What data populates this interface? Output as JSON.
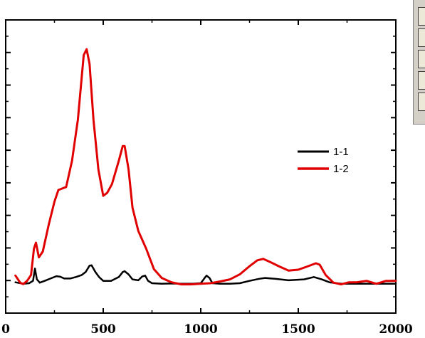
{
  "chart_data": {
    "type": "line",
    "title": "",
    "xlabel": "",
    "ylabel": "",
    "xlim": [
      0,
      2000
    ],
    "ylim": [
      0,
      1
    ],
    "x_ticks": [
      0,
      500,
      1000,
      1500,
      2000
    ],
    "x_tick_labels": [
      "0",
      "500",
      "1000",
      "1500",
      "2000"
    ],
    "grid": false,
    "legend_position": "right-middle",
    "series": [
      {
        "name": "1-1",
        "color": "#000000",
        "points": [
          [
            50,
            0.105
          ],
          [
            90,
            0.1
          ],
          [
            120,
            0.102
          ],
          [
            140,
            0.11
          ],
          [
            150,
            0.152
          ],
          [
            160,
            0.115
          ],
          [
            175,
            0.104
          ],
          [
            200,
            0.11
          ],
          [
            230,
            0.118
          ],
          [
            260,
            0.126
          ],
          [
            280,
            0.124
          ],
          [
            300,
            0.118
          ],
          [
            330,
            0.118
          ],
          [
            360,
            0.123
          ],
          [
            390,
            0.13
          ],
          [
            410,
            0.14
          ],
          [
            430,
            0.162
          ],
          [
            440,
            0.163
          ],
          [
            460,
            0.14
          ],
          [
            480,
            0.122
          ],
          [
            500,
            0.11
          ],
          [
            540,
            0.11
          ],
          [
            580,
            0.123
          ],
          [
            600,
            0.14
          ],
          [
            610,
            0.143
          ],
          [
            630,
            0.132
          ],
          [
            650,
            0.115
          ],
          [
            680,
            0.112
          ],
          [
            700,
            0.125
          ],
          [
            715,
            0.128
          ],
          [
            730,
            0.11
          ],
          [
            750,
            0.102
          ],
          [
            800,
            0.1
          ],
          [
            850,
            0.101
          ],
          [
            900,
            0.1
          ],
          [
            960,
            0.1
          ],
          [
            1000,
            0.102
          ],
          [
            1020,
            0.12
          ],
          [
            1030,
            0.128
          ],
          [
            1045,
            0.12
          ],
          [
            1060,
            0.102
          ],
          [
            1100,
            0.1
          ],
          [
            1150,
            0.1
          ],
          [
            1200,
            0.102
          ],
          [
            1250,
            0.11
          ],
          [
            1300,
            0.117
          ],
          [
            1330,
            0.12
          ],
          [
            1380,
            0.117
          ],
          [
            1450,
            0.112
          ],
          [
            1530,
            0.115
          ],
          [
            1580,
            0.123
          ],
          [
            1620,
            0.115
          ],
          [
            1660,
            0.105
          ],
          [
            1720,
            0.1
          ],
          [
            1800,
            0.1
          ],
          [
            1900,
            0.1
          ],
          [
            2000,
            0.1
          ]
        ]
      },
      {
        "name": "1-2",
        "color": "#e00000",
        "points": [
          [
            50,
            0.128
          ],
          [
            75,
            0.103
          ],
          [
            90,
            0.099
          ],
          [
            110,
            0.11
          ],
          [
            130,
            0.13
          ],
          [
            145,
            0.22
          ],
          [
            155,
            0.24
          ],
          [
            170,
            0.19
          ],
          [
            190,
            0.21
          ],
          [
            220,
            0.3
          ],
          [
            250,
            0.38
          ],
          [
            270,
            0.42
          ],
          [
            290,
            0.425
          ],
          [
            310,
            0.43
          ],
          [
            340,
            0.52
          ],
          [
            370,
            0.66
          ],
          [
            400,
            0.88
          ],
          [
            415,
            0.9
          ],
          [
            430,
            0.85
          ],
          [
            450,
            0.66
          ],
          [
            475,
            0.49
          ],
          [
            500,
            0.4
          ],
          [
            520,
            0.41
          ],
          [
            545,
            0.44
          ],
          [
            580,
            0.52
          ],
          [
            600,
            0.57
          ],
          [
            610,
            0.57
          ],
          [
            630,
            0.49
          ],
          [
            650,
            0.36
          ],
          [
            680,
            0.28
          ],
          [
            720,
            0.22
          ],
          [
            760,
            0.15
          ],
          [
            800,
            0.12
          ],
          [
            850,
            0.105
          ],
          [
            900,
            0.098
          ],
          [
            950,
            0.098
          ],
          [
            1000,
            0.1
          ],
          [
            1050,
            0.102
          ],
          [
            1100,
            0.108
          ],
          [
            1150,
            0.115
          ],
          [
            1200,
            0.132
          ],
          [
            1250,
            0.16
          ],
          [
            1290,
            0.18
          ],
          [
            1320,
            0.185
          ],
          [
            1360,
            0.173
          ],
          [
            1400,
            0.16
          ],
          [
            1450,
            0.145
          ],
          [
            1500,
            0.148
          ],
          [
            1550,
            0.16
          ],
          [
            1590,
            0.17
          ],
          [
            1610,
            0.165
          ],
          [
            1640,
            0.13
          ],
          [
            1680,
            0.104
          ],
          [
            1720,
            0.098
          ],
          [
            1760,
            0.105
          ],
          [
            1800,
            0.105
          ],
          [
            1850,
            0.11
          ],
          [
            1900,
            0.1
          ],
          [
            1950,
            0.11
          ],
          [
            2000,
            0.11
          ]
        ]
      }
    ]
  }
}
